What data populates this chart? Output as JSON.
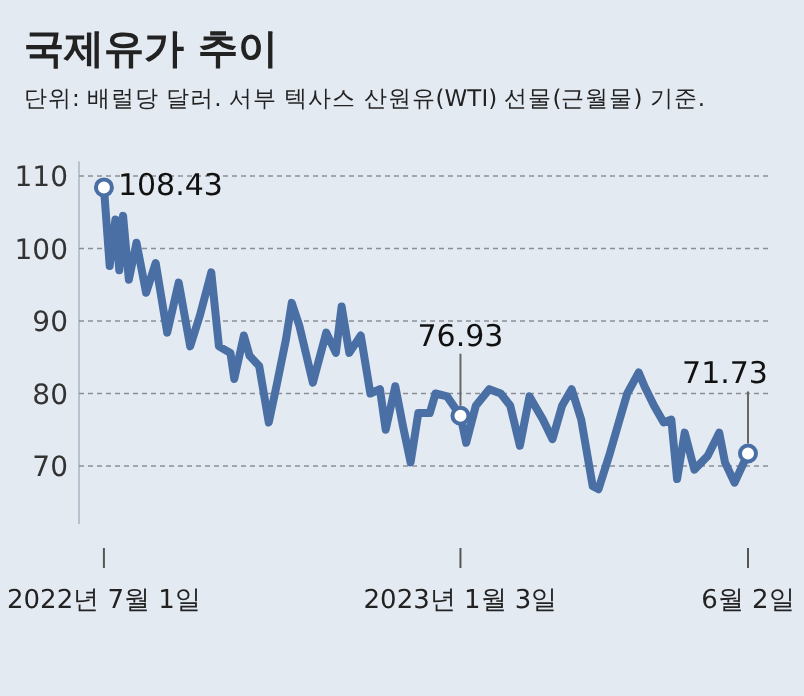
{
  "chart_data": {
    "type": "line",
    "title": "국제유가 추이",
    "subtitle": "단위: 배럴당 달러. 서부 텍사스 산원유(WTI) 선물(근월물) 기준.",
    "x": [
      "2022-07-01",
      "2022-07-04",
      "2022-07-07",
      "2022-07-09",
      "2022-07-11",
      "2022-07-14",
      "2022-07-18",
      "2022-07-23",
      "2022-07-28",
      "2022-08-03",
      "2022-08-09",
      "2022-08-15",
      "2022-08-20",
      "2022-08-26",
      "2022-08-30",
      "2022-09-05",
      "2022-09-07",
      "2022-09-12",
      "2022-09-15",
      "2022-09-20",
      "2022-09-25",
      "2022-09-29",
      "2022-10-04",
      "2022-10-07",
      "2022-10-11",
      "2022-10-18",
      "2022-10-25",
      "2022-10-30",
      "2022-11-02",
      "2022-11-06",
      "2022-11-12",
      "2022-11-17",
      "2022-11-22",
      "2022-11-25",
      "2022-11-30",
      "2022-12-04",
      "2022-12-08",
      "2022-12-12",
      "2022-12-18",
      "2022-12-21",
      "2022-12-27",
      "2023-01-03",
      "2023-01-06",
      "2023-01-11",
      "2023-01-18",
      "2023-01-24",
      "2023-01-29",
      "2023-02-03",
      "2023-02-08",
      "2023-02-15",
      "2023-02-20",
      "2023-02-25",
      "2023-03-02",
      "2023-03-07",
      "2023-03-13",
      "2023-03-16",
      "2023-03-22",
      "2023-03-27",
      "2023-03-31",
      "2023-04-06",
      "2023-04-09",
      "2023-04-14",
      "2023-04-19",
      "2023-04-23",
      "2023-04-26",
      "2023-04-30",
      "2023-05-05",
      "2023-05-12",
      "2023-05-18",
      "2023-05-21",
      "2023-05-26",
      "2023-06-02"
    ],
    "series": [
      {
        "color": "#4a6fa5",
        "values": [
          108.43,
          97.6,
          104,
          97,
          104.5,
          95.7,
          100.8,
          93.9,
          98,
          88.4,
          95.3,
          86.5,
          90.7,
          96.7,
          86.5,
          85.6,
          82,
          88,
          85.2,
          83.8,
          76,
          81,
          87.5,
          92.5,
          89.3,
          81.5,
          88.4,
          85.6,
          92,
          85.6,
          88,
          80,
          80.6,
          75,
          81,
          75.5,
          70.5,
          77.3,
          77.3,
          80,
          79.6,
          76.93,
          73.2,
          78.3,
          80.6,
          80,
          78.3,
          72.8,
          79.6,
          76.4,
          73.7,
          78.3,
          80.6,
          76.4,
          67.2,
          66.8,
          71.8,
          76.4,
          80,
          82.9,
          81,
          78.3,
          76,
          76.4,
          68.2,
          74.6,
          69.5,
          71.4,
          74.6,
          70.5,
          67.7,
          71.73
        ]
      }
    ],
    "xlim": [
      "2022-06-18",
      "2023-06-14"
    ],
    "xticks": [
      {
        "value": "2022-07-01",
        "label": "2022년 7월 1일"
      },
      {
        "value": "2023-01-03",
        "label": "2023년 1월 3일"
      },
      {
        "value": "2023-06-02",
        "label": "6월 2일"
      }
    ],
    "ylim": [
      62,
      112
    ],
    "yticks": [
      70,
      80,
      90,
      100,
      110
    ],
    "grid": "y",
    "annotations": [
      {
        "text": "108.43",
        "x": "2022-07-01",
        "y": 108.43
      },
      {
        "text": "76.93",
        "x": "2023-01-03",
        "y": 76.93
      },
      {
        "text": "71.73",
        "x": "2023-06-02",
        "y": 71.73
      }
    ]
  }
}
